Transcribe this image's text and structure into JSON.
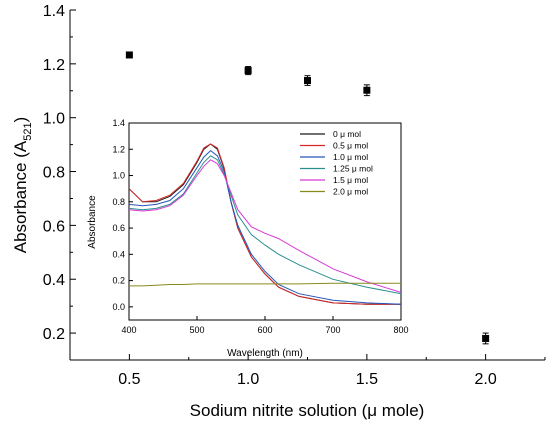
{
  "chart_data": [
    {
      "type": "scatter",
      "xlabel": "Sodium nitrite solution (μ mole)",
      "ylabel": "Absorbance (A521)",
      "xlim": [
        0.25,
        2.25
      ],
      "ylim": [
        0.1,
        1.4
      ],
      "xticks": [
        "0.5",
        "1.0",
        "1.5",
        "2.0"
      ],
      "yticks": [
        "0.2",
        "0.4",
        "0.6",
        "0.8",
        "1.0",
        "1.2",
        "1.4"
      ],
      "grid": false,
      "series": [
        {
          "marker": "square",
          "points": [
            {
              "x": 0.5,
              "y": 1.233,
              "err": 0.008
            },
            {
              "x": 1.0,
              "y": 1.175,
              "err": 0.015
            },
            {
              "x": 1.25,
              "y": 1.138,
              "err": 0.018
            },
            {
              "x": 1.5,
              "y": 1.102,
              "err": 0.02
            },
            {
              "x": 2.0,
              "y": 0.18,
              "err": 0.02
            }
          ]
        }
      ]
    },
    {
      "type": "line",
      "xlabel": "Wavelength (nm)",
      "ylabel": "Absorbance",
      "xlim": [
        400,
        800
      ],
      "ylim": [
        -0.1,
        1.4
      ],
      "xticks": [
        "400",
        "500",
        "600",
        "700",
        "800"
      ],
      "yticks": [
        "0.0",
        "0.2",
        "0.4",
        "0.6",
        "0.8",
        "1.0",
        "1.2",
        "1.4"
      ],
      "legend_position": "top-right",
      "grid": false,
      "x": [
        400,
        420,
        440,
        460,
        480,
        500,
        510,
        520,
        530,
        540,
        550,
        560,
        580,
        600,
        620,
        650,
        700,
        750,
        800
      ],
      "series": [
        {
          "name": "0 μ mol",
          "color": "#1a1a1a",
          "values": [
            0.9,
            0.8,
            0.8,
            0.84,
            0.93,
            1.1,
            1.2,
            1.24,
            1.2,
            1.05,
            0.8,
            0.6,
            0.38,
            0.25,
            0.15,
            0.08,
            0.03,
            0.02,
            0.02
          ]
        },
        {
          "name": "0.5 μ mol",
          "color": "#d62728",
          "values": [
            0.9,
            0.8,
            0.81,
            0.85,
            0.94,
            1.11,
            1.21,
            1.24,
            1.21,
            1.06,
            0.8,
            0.6,
            0.38,
            0.25,
            0.15,
            0.08,
            0.03,
            0.02,
            0.02
          ]
        },
        {
          "name": "1.0 μ mol",
          "color": "#2456b8",
          "values": [
            0.78,
            0.77,
            0.78,
            0.81,
            0.9,
            1.06,
            1.14,
            1.19,
            1.15,
            1.03,
            0.8,
            0.62,
            0.4,
            0.27,
            0.17,
            0.1,
            0.05,
            0.03,
            0.02
          ]
        },
        {
          "name": "1.25 μ mol",
          "color": "#2a8f8f",
          "values": [
            0.75,
            0.74,
            0.75,
            0.78,
            0.86,
            1.02,
            1.1,
            1.15,
            1.12,
            1.01,
            0.85,
            0.7,
            0.55,
            0.47,
            0.4,
            0.32,
            0.21,
            0.15,
            0.1
          ]
        },
        {
          "name": "1.5 μ mol",
          "color": "#d63ad6",
          "values": [
            0.74,
            0.73,
            0.74,
            0.77,
            0.85,
            1.0,
            1.07,
            1.12,
            1.09,
            1.0,
            0.87,
            0.74,
            0.61,
            0.56,
            0.52,
            0.43,
            0.29,
            0.19,
            0.11
          ]
        },
        {
          "name": "2.0 μ mol",
          "color": "#8a8a1a",
          "values": [
            0.16,
            0.16,
            0.165,
            0.17,
            0.17,
            0.175,
            0.175,
            0.175,
            0.175,
            0.175,
            0.175,
            0.175,
            0.175,
            0.175,
            0.175,
            0.175,
            0.18,
            0.18,
            0.18
          ]
        }
      ]
    }
  ]
}
